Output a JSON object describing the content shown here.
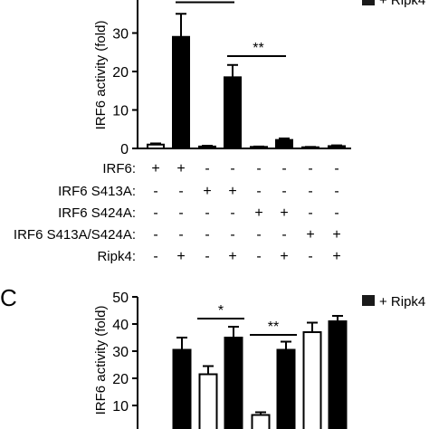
{
  "chart_data": [
    {
      "type": "bar",
      "panel": "",
      "ylabel": "IRF6 activity (fold)",
      "ylim": [
        0,
        40
      ],
      "yticks": [
        0,
        10,
        20,
        30
      ],
      "legend": {
        "label": "+ Ripk4",
        "color": "#1a1a1a",
        "placement": "top-right"
      },
      "series": [
        {
          "fill": "white",
          "values": [
            1,
            29,
            0.5,
            18.5,
            0.4,
            2.2,
            0.3,
            0.6
          ],
          "errors": [
            0.3,
            6,
            0.2,
            3.2,
            0.1,
            0.4,
            0.1,
            0.2
          ],
          "colors": [
            "#ffffff",
            "#000000",
            "#000000",
            "#000000",
            "#000000",
            "#000000",
            "#000000",
            "#000000"
          ]
        }
      ],
      "values": [
        1,
        29,
        0.5,
        18.5,
        0.4,
        2.2,
        0.3,
        0.6
      ],
      "errors": [
        0.3,
        6,
        0.2,
        3.2,
        0.1,
        0.4,
        0.1,
        0.2
      ],
      "bar_colors": [
        "#ffffff",
        "#000000",
        "#000000",
        "#000000",
        "#000000",
        "#000000",
        "#000000",
        "#000000"
      ],
      "significance": [
        {
          "from": 1,
          "to": 3,
          "label": "*",
          "y": 38
        },
        {
          "from": 3,
          "to": 5,
          "label": "**",
          "y": 24
        }
      ],
      "conditions": [
        {
          "label": "IRF6:",
          "marks": [
            "+",
            "+",
            "-",
            "-",
            "-",
            "-",
            "-",
            "-"
          ]
        },
        {
          "label": "IRF6 S413A:",
          "marks": [
            "-",
            "-",
            "+",
            "+",
            "-",
            "-",
            "-",
            "-"
          ]
        },
        {
          "label": "IRF6 S424A:",
          "marks": [
            "-",
            "-",
            "-",
            "-",
            "+",
            "+",
            "-",
            "-"
          ]
        },
        {
          "label": "IRF6 S413A/S424A:",
          "marks": [
            "-",
            "-",
            "-",
            "-",
            "-",
            "-",
            "+",
            "+"
          ]
        },
        {
          "label": "Ripk4:",
          "marks": [
            "-",
            "+",
            "-",
            "+",
            "-",
            "+",
            "-",
            "+"
          ]
        }
      ]
    },
    {
      "type": "bar",
      "panel": "C",
      "ylabel": "IRF6 activity (fold)",
      "ylim": [
        0,
        50
      ],
      "yticks": [
        10,
        20,
        30,
        40,
        50
      ],
      "legend": {
        "label": "+ Ripk4",
        "color": "#1a1a1a",
        "placement": "top-right"
      },
      "values": [
        30.5,
        21.5,
        35,
        6.5,
        30.5,
        37,
        41
      ],
      "errors": [
        4.5,
        3,
        4,
        1,
        3,
        3.5,
        2
      ],
      "bar_colors": [
        "#000000",
        "#ffffff",
        "#000000",
        "#ffffff",
        "#000000",
        "#ffffff",
        "#000000"
      ],
      "significance": [
        {
          "from": 1,
          "to": 2,
          "label": "*",
          "y": 42
        },
        {
          "from": 3,
          "to": 4,
          "label": "**",
          "y": 36
        }
      ]
    }
  ]
}
